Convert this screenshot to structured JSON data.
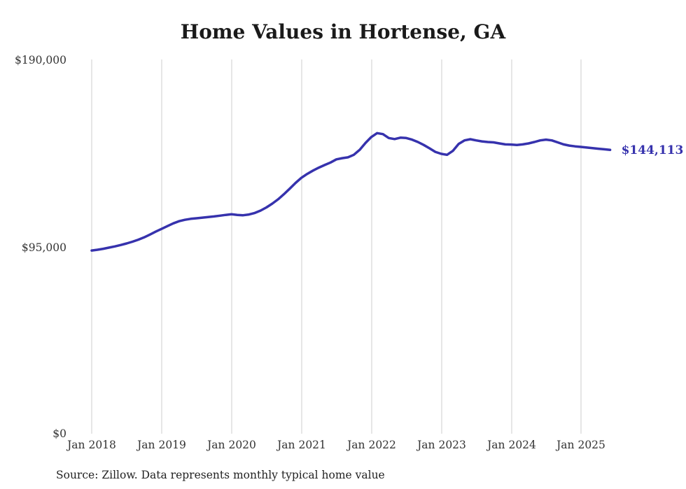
{
  "title": "Home Values in Hortense, GA",
  "source_note": "Source: Zillow. Data represents monthly typical home value",
  "end_label": "$144,113",
  "colors": {
    "line": "#3632ad",
    "accent": "#3632ad",
    "grid": "#cccccc",
    "text": "#333333"
  },
  "chart_data": {
    "type": "line",
    "title": "Home Values in Hortense, GA",
    "xlabel": "",
    "ylabel": "",
    "ylim": [
      0,
      190000
    ],
    "grid": "vertical-only",
    "legend": "none",
    "start_month": "2018-01",
    "end_month": "2025-06",
    "x_tick_labels": [
      "Jan 2018",
      "Jan 2019",
      "Jan 2020",
      "Jan 2021",
      "Jan 2022",
      "Jan 2023",
      "Jan 2024",
      "Jan 2025"
    ],
    "y_ticks": [
      {
        "label": "$0",
        "value": 0
      },
      {
        "label": "$95,000",
        "value": 95000
      },
      {
        "label": "$190,000",
        "value": 190000
      }
    ],
    "final_value": 144113,
    "final_value_label": "$144,113",
    "series": [
      {
        "name": "Typical home value",
        "values": [
          93000,
          93400,
          93900,
          94500,
          95100,
          95800,
          96600,
          97500,
          98500,
          99700,
          101100,
          102600,
          104000,
          105400,
          106800,
          107900,
          108600,
          109100,
          109400,
          109700,
          110000,
          110300,
          110700,
          111100,
          111400,
          111100,
          110900,
          111300,
          112100,
          113300,
          114900,
          116800,
          119000,
          121600,
          124400,
          127300,
          129900,
          131900,
          133600,
          135100,
          136400,
          137700,
          139300,
          139900,
          140300,
          141600,
          144100,
          147600,
          150600,
          152600,
          152100,
          150100,
          149600,
          150300,
          150100,
          149300,
          148100,
          146600,
          144900,
          143100,
          142100,
          141600,
          143600,
          147100,
          148900,
          149500,
          148900,
          148400,
          148100,
          147900,
          147400,
          146900,
          146800,
          146600,
          146900,
          147400,
          148100,
          148900,
          149300,
          148900,
          147900,
          146900,
          146300,
          145900,
          145600,
          145300,
          145000,
          144700,
          144400,
          144113
        ]
      }
    ]
  }
}
